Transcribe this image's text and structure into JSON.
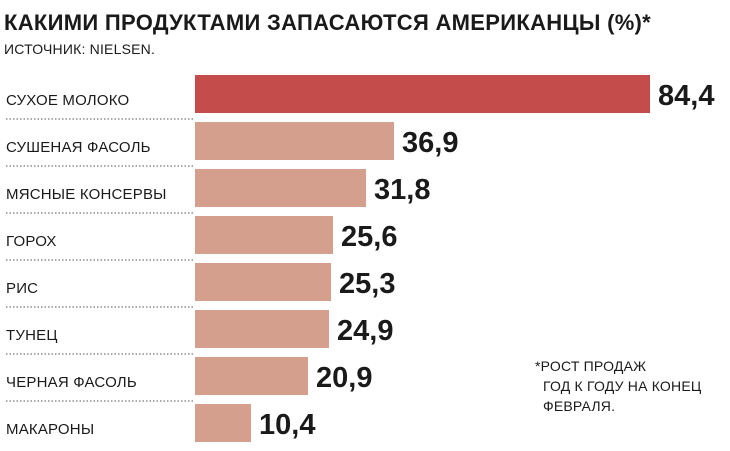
{
  "title": "КАКИМИ ПРОДУКТАМИ ЗАПАСАЮТСЯ АМЕРИКАНЦЫ (%)*",
  "source": "ИСТОЧНИК: NIELSEN.",
  "note": {
    "line1": "*РОСТ ПРОДАЖ",
    "line2": "ГОД К ГОДУ НА КОНЕЦ",
    "line3": "ФЕВРАЛЯ."
  },
  "colors": {
    "highlight": "#c44d4b",
    "bar": "#d4a08d",
    "separator": "#555555"
  },
  "chart_data": {
    "type": "bar",
    "orientation": "horizontal",
    "title": "КАКИМИ ПРОДУКТАМИ ЗАПАСАЮТСЯ АМЕРИКАНЦЫ (%)*",
    "categories": [
      "СУХОЕ МОЛОКО",
      "СУШЕНАЯ ФАСОЛЬ",
      "МЯСНЫЕ КОНСЕРВЫ",
      "ГОРОХ",
      "РИС",
      "ТУНЕЦ",
      "ЧЕРНАЯ ФАСОЛЬ",
      "МАКАРОНЫ"
    ],
    "values": [
      84.4,
      36.9,
      31.8,
      25.6,
      25.3,
      24.9,
      20.9,
      10.4
    ],
    "value_labels": [
      "84,4",
      "36,9",
      "31,8",
      "25,6",
      "25,3",
      "24,9",
      "20,9",
      "10,4"
    ],
    "highlight_index": 0,
    "xlim": [
      0,
      84.4
    ],
    "grid": false,
    "legend": "none"
  }
}
